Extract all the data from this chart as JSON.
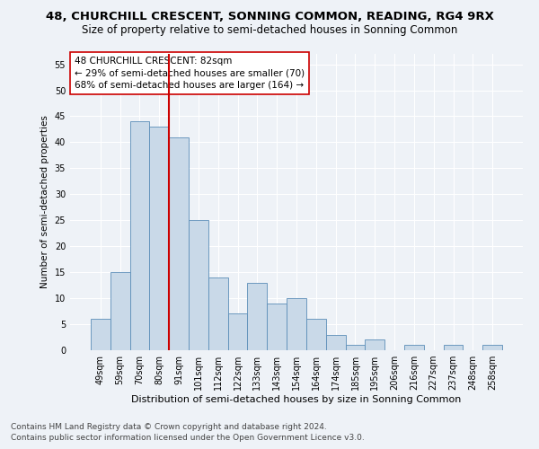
{
  "title": "48, CHURCHILL CRESCENT, SONNING COMMON, READING, RG4 9RX",
  "subtitle": "Size of property relative to semi-detached houses in Sonning Common",
  "xlabel": "Distribution of semi-detached houses by size in Sonning Common",
  "ylabel": "Number of semi-detached properties",
  "categories": [
    "49sqm",
    "59sqm",
    "70sqm",
    "80sqm",
    "91sqm",
    "101sqm",
    "112sqm",
    "122sqm",
    "133sqm",
    "143sqm",
    "154sqm",
    "164sqm",
    "174sqm",
    "185sqm",
    "195sqm",
    "206sqm",
    "216sqm",
    "227sqm",
    "237sqm",
    "248sqm",
    "258sqm"
  ],
  "values": [
    6,
    15,
    44,
    43,
    41,
    25,
    14,
    7,
    13,
    9,
    10,
    6,
    3,
    1,
    2,
    0,
    1,
    0,
    1,
    0,
    1
  ],
  "bar_color": "#c9d9e8",
  "bar_edge_color": "#5b8db8",
  "vline_x_index": 3.5,
  "vline_color": "#cc0000",
  "annotation_text": "48 CHURCHILL CRESCENT: 82sqm\n← 29% of semi-detached houses are smaller (70)\n68% of semi-detached houses are larger (164) →",
  "annotation_box_color": "#ffffff",
  "annotation_box_edge_color": "#cc0000",
  "ylim": [
    0,
    57
  ],
  "yticks": [
    0,
    5,
    10,
    15,
    20,
    25,
    30,
    35,
    40,
    45,
    50,
    55
  ],
  "footer1": "Contains HM Land Registry data © Crown copyright and database right 2024.",
  "footer2": "Contains public sector information licensed under the Open Government Licence v3.0.",
  "title_fontsize": 9.5,
  "subtitle_fontsize": 8.5,
  "xlabel_fontsize": 8,
  "ylabel_fontsize": 7.5,
  "tick_fontsize": 7,
  "footer_fontsize": 6.5,
  "annotation_fontsize": 7.5,
  "background_color": "#eef2f7",
  "plot_bg_color": "#eef2f7",
  "grid_color": "#ffffff"
}
